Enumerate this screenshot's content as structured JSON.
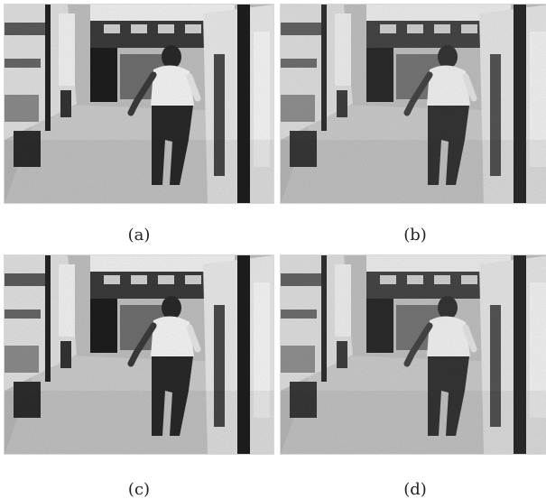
{
  "panels": [
    {
      "caption": "(a)"
    },
    {
      "caption": "(b)"
    },
    {
      "caption": "(c)"
    },
    {
      "caption": "(d)"
    }
  ],
  "palette": {
    "floor": "#c9c9c9",
    "wall_light": "#e3e3e3",
    "wall_dark": "#5a5a5a",
    "ceiling": "#3a3a3a",
    "shirt": "#f2f2f2",
    "pants": "#2a2a2a"
  }
}
